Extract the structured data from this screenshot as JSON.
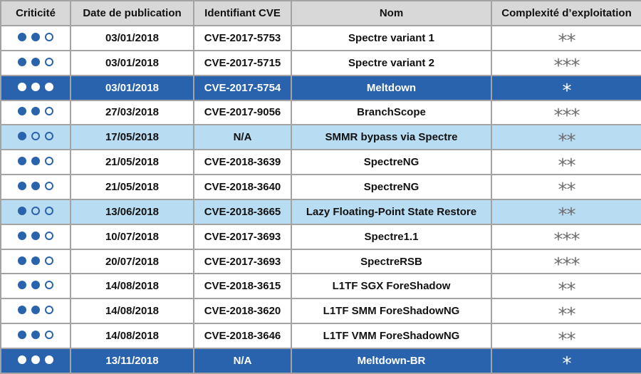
{
  "headers": [
    "Criticité",
    "Date de publication",
    "Identifiant CVE",
    "Nom",
    "Complexité d’exploitation"
  ],
  "colors": {
    "header_bg": "#d8d8d8",
    "highlight_light": "#b8dcf1",
    "highlight_dark": "#2a63ad",
    "dot": "#2a63ad",
    "star": "#6d6d6d"
  },
  "rows": [
    {
      "criticite": 2,
      "date": "03/01/2018",
      "cve": "CVE-2017-5753",
      "nom": "Spectre variant 1",
      "complexite": "**",
      "highlight": "none"
    },
    {
      "criticite": 2,
      "date": "03/01/2018",
      "cve": "CVE-2017-5715",
      "nom": "Spectre variant 2",
      "complexite": "***",
      "highlight": "none"
    },
    {
      "criticite": 3,
      "date": "03/01/2018",
      "cve": "CVE-2017-5754",
      "nom": "Meltdown",
      "complexite": "*",
      "highlight": "dark"
    },
    {
      "criticite": 2,
      "date": "27/03/2018",
      "cve": "CVE-2017-9056",
      "nom": "BranchScope",
      "complexite": "***",
      "highlight": "none"
    },
    {
      "criticite": 1,
      "date": "17/05/2018",
      "cve": "N/A",
      "nom": "SMMR bypass via Spectre",
      "complexite": "**",
      "highlight": "light"
    },
    {
      "criticite": 2,
      "date": "21/05/2018",
      "cve": "CVE-2018-3639",
      "nom": "SpectreNG",
      "complexite": "**",
      "highlight": "none"
    },
    {
      "criticite": 2,
      "date": "21/05/2018",
      "cve": "CVE-2018-3640",
      "nom": "SpectreNG",
      "complexite": "**",
      "highlight": "none"
    },
    {
      "criticite": 1,
      "date": "13/06/2018",
      "cve": "CVE-2018-3665",
      "nom": "Lazy Floating-Point State Restore",
      "complexite": "**",
      "highlight": "light"
    },
    {
      "criticite": 2,
      "date": "10/07/2018",
      "cve": "CVE-2017-3693",
      "nom": "Spectre1.1",
      "complexite": "***",
      "highlight": "none"
    },
    {
      "criticite": 2,
      "date": "20/07/2018",
      "cve": "CVE-2017-3693",
      "nom": "SpectreRSB",
      "complexite": "***",
      "highlight": "none"
    },
    {
      "criticite": 2,
      "date": "14/08/2018",
      "cve": "CVE-2018-3615",
      "nom": "L1TF SGX ForeShadow",
      "complexite": "**",
      "highlight": "none"
    },
    {
      "criticite": 2,
      "date": "14/08/2018",
      "cve": "CVE-2018-3620",
      "nom": "L1TF SMM ForeShadowNG",
      "complexite": "**",
      "highlight": "none"
    },
    {
      "criticite": 2,
      "date": "14/08/2018",
      "cve": "CVE-2018-3646",
      "nom": "L1TF VMM ForeShadowNG",
      "complexite": "**",
      "highlight": "none"
    },
    {
      "criticite": 3,
      "date": "13/11/2018",
      "cve": "N/A",
      "nom": "Meltdown-BR",
      "complexite": "*",
      "highlight": "dark"
    }
  ]
}
